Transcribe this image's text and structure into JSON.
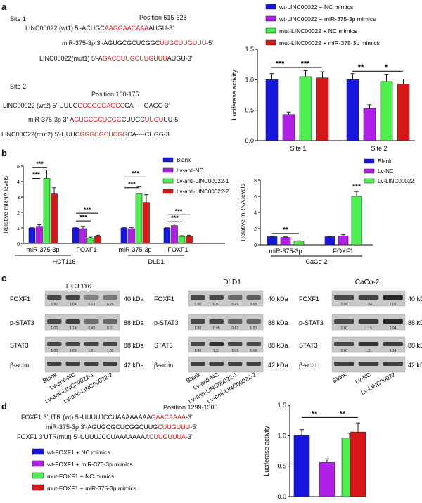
{
  "colors": {
    "blue": "#1616e0",
    "purple": "#b01ee8",
    "green": "#4cf04c",
    "red": "#d81818",
    "red_text": "#d62020"
  },
  "panel_a": {
    "letter": "a",
    "site1": {
      "title": "Site 1",
      "position": "Position 615-628",
      "wt": [
        {
          "t": "LINC00022 (wt1) 5'-ACUGC",
          "r": false
        },
        {
          "t": "AAGGAACAAA",
          "r": true
        },
        {
          "t": "AUGU-3'",
          "r": false
        }
      ],
      "mir": [
        {
          "t": "miR-375-3p  3'-AGUGCGCUCGGC",
          "r": false
        },
        {
          "t": "UUGCUUGUUU",
          "r": true
        },
        {
          "t": "-5'",
          "r": false
        }
      ],
      "mut": [
        {
          "t": "LINC00022(mut1) 5'-A",
          "r": false
        },
        {
          "t": "GACCUUGCUUGUUU",
          "r": true
        },
        {
          "t": "AUGU-3'",
          "r": false
        }
      ]
    },
    "site2": {
      "title": "Site 2",
      "position": "Position 160-175",
      "wt": [
        {
          "t": "LINC00022 (wt2) 5'-UUUC",
          "r": false
        },
        {
          "t": "GCGGCGAGCC",
          "r": true
        },
        {
          "t": "CA-----GAGC-3'",
          "r": false
        }
      ],
      "mir": [
        {
          "t": "miR-375-3p  3'-A",
          "r": false
        },
        {
          "t": "GUGCGCUCGG",
          "r": true
        },
        {
          "t": "CUUGC",
          "r": false
        },
        {
          "t": "UUGU",
          "r": true
        },
        {
          "t": "UU-5'",
          "r": false
        }
      ],
      "mut": [
        {
          "t": "LINC00C22(mut2) 5'-UUUC",
          "r": false
        },
        {
          "t": "GGGCGCUCGG",
          "r": true
        },
        {
          "t": "CA----CUGG-3'",
          "r": false
        }
      ]
    }
  },
  "chart_data": [
    {
      "type": "bar",
      "id": "a-luciferase",
      "ylabel": "Luciferase activity",
      "ylim": [
        0,
        1.5
      ],
      "yticks": [
        "0.0",
        "0.5",
        "1.0",
        "1.5"
      ],
      "categories": [
        "Site 1",
        "Site 2"
      ],
      "legend": [
        "wt-LINC00022 + NC mimics",
        "wt-LINC00022 + miR-375-3p mimics",
        "mut-LINC00022 + NC mimics",
        "mut-LINC00022 + miR-375-3p mimics"
      ],
      "series": [
        {
          "name": "wt-LINC00022 + NC mimics",
          "values": [
            1.0,
            1.0
          ]
        },
        {
          "name": "wt-LINC00022 + miR-375-3p mimics",
          "values": [
            0.43,
            0.53
          ]
        },
        {
          "name": "mut-LINC00022 + NC mimics",
          "values": [
            1.05,
            0.97
          ]
        },
        {
          "name": "mut-LINC00022 + miR-375-3p mimics",
          "values": [
            1.03,
            0.93
          ]
        }
      ],
      "sig": [
        "***",
        "***",
        "**",
        "*"
      ]
    },
    {
      "type": "bar",
      "id": "b-hct-dld",
      "ylabel": "Relative mRNA levels",
      "ylim": [
        0,
        5
      ],
      "yticks": [
        "0",
        "1",
        "2",
        "3",
        "4",
        "5"
      ],
      "categories": [
        "miR-375-3p",
        "FOXF1",
        "miR-375-3p",
        "FOXF1"
      ],
      "groups": [
        "HCT116",
        "DLD1"
      ],
      "legend": [
        "Blank",
        "Lv-anti-NC",
        "Lv-anti-LINC00022-1",
        "Lv-anti-LINC00022-2"
      ],
      "series": [
        {
          "name": "Blank",
          "values": [
            1.0,
            1.0,
            1.0,
            1.0
          ]
        },
        {
          "name": "Lv-anti-NC",
          "values": [
            1.1,
            0.95,
            0.95,
            1.15
          ]
        },
        {
          "name": "Lv-anti-LINC00022-1",
          "values": [
            4.2,
            0.35,
            3.2,
            0.45
          ]
        },
        {
          "name": "Lv-anti-LINC00022-2",
          "values": [
            3.2,
            0.45,
            2.65,
            0.45
          ]
        }
      ],
      "sig": [
        "***",
        "***",
        "***",
        "***",
        "***",
        "***",
        "***",
        "***"
      ]
    },
    {
      "type": "bar",
      "id": "b-caco2",
      "ylabel": "Relative mRNA levels",
      "ylim": [
        0,
        8
      ],
      "yticks": [
        "0",
        "2",
        "4",
        "6",
        "8"
      ],
      "categories": [
        "miR-375-3p",
        "FOXF1"
      ],
      "groups": [
        "CaCo-2"
      ],
      "legend": [
        "Blank",
        "Lv-NC",
        "Lv-LINC00022"
      ],
      "series": [
        {
          "name": "Blank",
          "values": [
            1.0,
            1.0
          ]
        },
        {
          "name": "Lv-NC",
          "values": [
            0.9,
            1.1
          ]
        },
        {
          "name": "Lv-LINC00022",
          "values": [
            0.45,
            6.0
          ]
        }
      ],
      "sig": [
        "**",
        "***"
      ]
    },
    {
      "type": "bar",
      "id": "d-luciferase",
      "ylabel": "Luciferase activity",
      "ylim": [
        0,
        1.5
      ],
      "yticks": [
        "0.0",
        "0.5",
        "1.0",
        "1.5"
      ],
      "categories": [
        "wt-FOXF1 + NC mimics",
        "wt-FOXF1 + miR-375-3p mimics",
        "mut-FOXF1 + NC mimics",
        "mut-FOXF1 + miR-375-3p mimics"
      ],
      "values": [
        1.0,
        0.56,
        0.96,
        1.06
      ],
      "sig": [
        "**",
        "**"
      ]
    }
  ],
  "panel_b": {
    "letter": "b"
  },
  "panel_c": {
    "letter": "c",
    "blots": [
      {
        "title": "HCT116",
        "rows": [
          "FOXF1",
          "p-STAT3",
          "STAT3",
          "β-actin"
        ],
        "kda": [
          "40 kDa",
          "88 kDa",
          "88 kDa",
          "42 kDa"
        ],
        "vals": [
          [
            "1.00",
            "1.04",
            "0.13",
            "0.26"
          ],
          [
            "1.00",
            "1.14",
            "0.43",
            "0.51"
          ],
          [
            "1.00",
            "1.03",
            "1.01",
            "1.02"
          ]
        ],
        "lanes": [
          "Blank",
          "Lv-anti-NC",
          "Lv-anti-LINC00022-1",
          "Lv-anti-LINC00022-2"
        ]
      },
      {
        "title": "DLD1",
        "rows": [
          "FOXF1",
          "p-STAT3",
          "STAT3",
          "β-actin"
        ],
        "kda": [
          "40 kDa",
          "88 kDa",
          "88 kDa",
          "42 kDa"
        ],
        "vals": [
          [
            "1.00",
            "0.97",
            "0.49",
            "0.65"
          ],
          [
            "1.00",
            "0.95",
            "0.62",
            "0.57"
          ],
          [
            "1.00",
            "1.31",
            "1.03",
            "0.96"
          ]
        ],
        "lanes": [
          "Blank",
          "Lv-anti-NC",
          "Lv-anti-LINC00022-1",
          "Lv-anti-LINC00022-2"
        ]
      },
      {
        "title": "CaCo-2",
        "rows": [
          "FOXF1",
          "p-STAT3",
          "STAT3",
          "β-actn"
        ],
        "kda": [
          "40 kDa",
          "88 kDa",
          "88 kDa",
          "42 kDa"
        ],
        "vals": [
          [
            "1.00",
            "1.04",
            "2.01"
          ],
          [
            "1.00",
            "1.15",
            "2.94"
          ],
          [
            "1.00",
            "1.31",
            "1.14"
          ]
        ],
        "lanes": [
          "Blank",
          "Lv-NC",
          "Lv-LINC00022"
        ]
      }
    ]
  },
  "panel_d": {
    "letter": "d",
    "position": "Position 1299-1305",
    "wt": [
      {
        "t": "FOXF1 3'UTR (wt) 5'-UUUUJCCUAAAAAAAA",
        "r": false
      },
      {
        "t": "GAACAAAA",
        "r": true
      },
      {
        "t": "-3'",
        "r": false
      }
    ],
    "mir": [
      {
        "t": "miR-375-3p      3'-AGUGCGCUCGGCUUG",
        "r": false
      },
      {
        "t": "CUUGUUU",
        "r": true
      },
      {
        "t": "-5'",
        "r": false
      }
    ],
    "mut": [
      {
        "t": "FOXF1 3'UTR(mut) 5'-UUUUJCCUAAAAAAAA",
        "r": false
      },
      {
        "t": "CUUGUUUA",
        "r": true
      },
      {
        "t": "-3'",
        "r": false
      }
    ],
    "legend": [
      "wt-FOXF1 + NC mimics",
      "wt-FOXF1 + miR-375-3p mimics",
      "mut-FOXF1 + NC mimics",
      "mut-FOXF1 + miR-375-3p mimics"
    ]
  }
}
